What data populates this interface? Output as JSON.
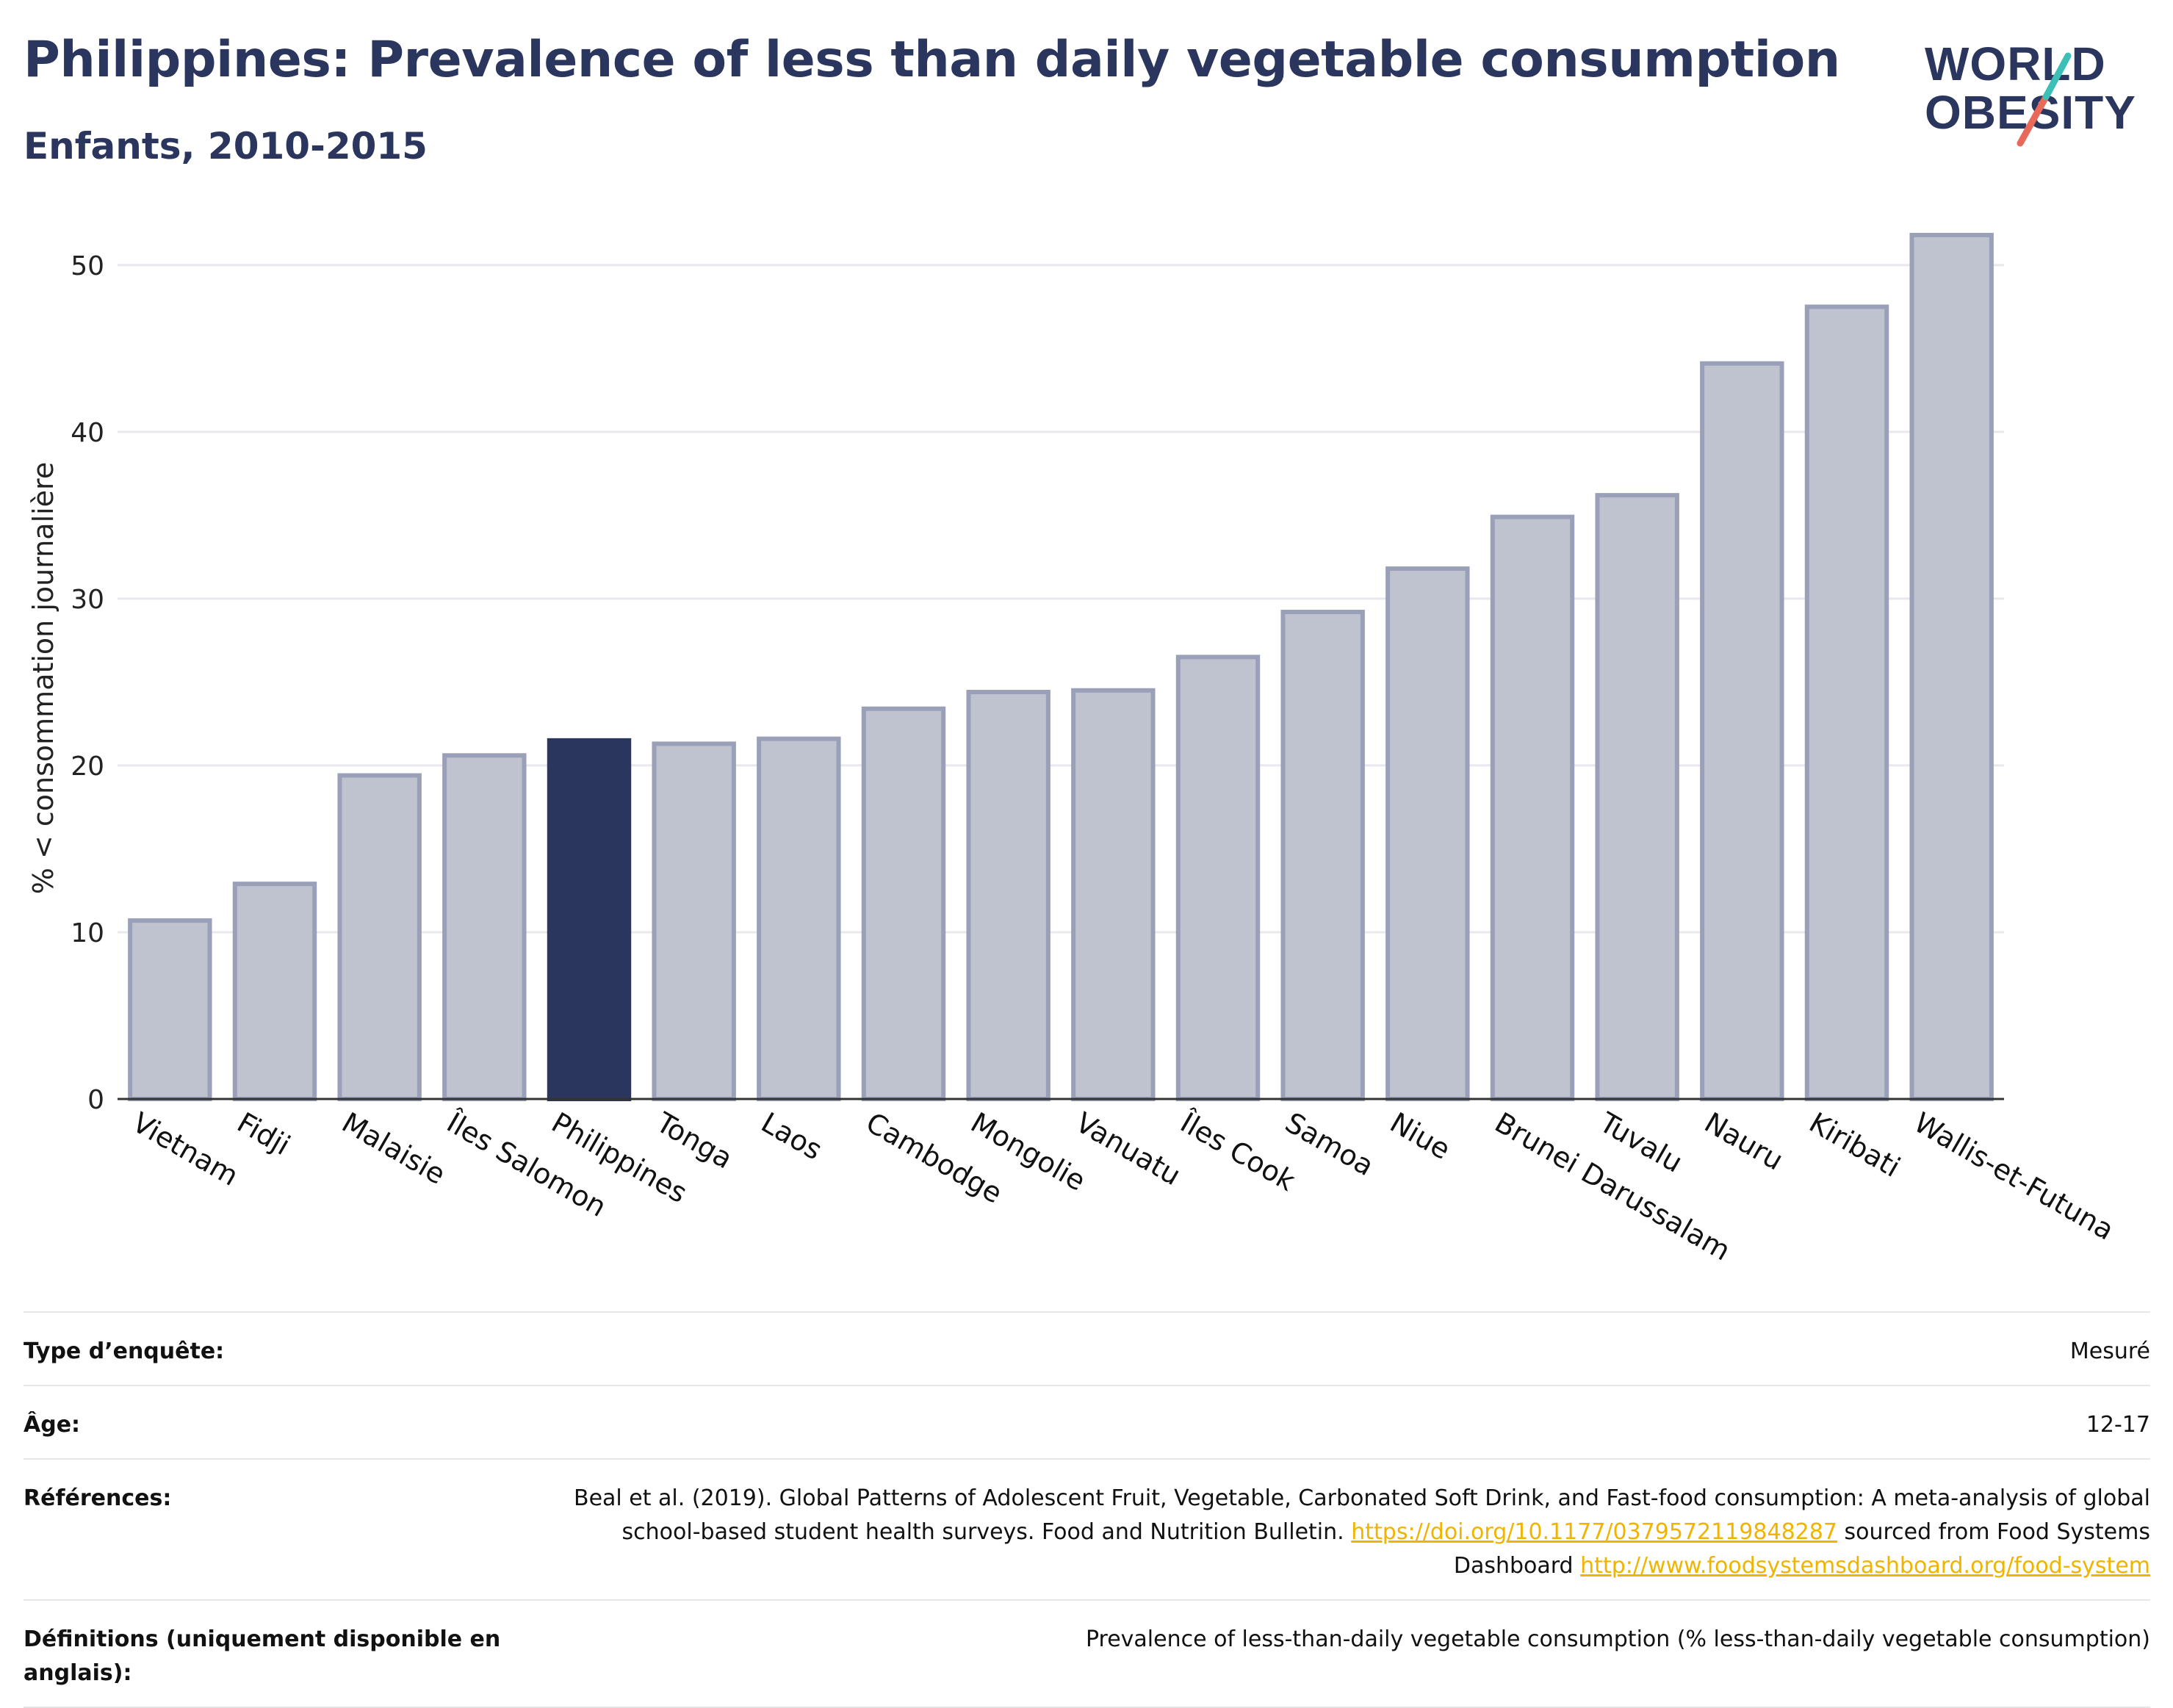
{
  "header": {
    "title": "Philippines: Prevalence of less than daily vegetable consumption",
    "subtitle": "Enfants, 2010-2015"
  },
  "logo": {
    "line1": "WORLD",
    "line2": "OBESITY",
    "icon": "slash-icon",
    "colors": {
      "text": "#2b365e",
      "slash_top": "#3bbfb7",
      "slash_bottom": "#e8685a"
    }
  },
  "colors": {
    "highlight": "#2b365e",
    "bar_fill": "#bfc3d0",
    "bar_stroke": "#9aa0b8",
    "grid": "#e8e8ee",
    "link": "#f0b400"
  },
  "chart_data": {
    "type": "bar",
    "title": "Philippines: Prevalence of less than daily vegetable consumption",
    "subtitle": "Enfants, 2010-2015",
    "xlabel": "",
    "ylabel": "% < consommation journalière",
    "ylim": [
      0,
      54
    ],
    "yticks": [
      0,
      10,
      20,
      30,
      40,
      50
    ],
    "grid": true,
    "highlight": "Philippines",
    "categories": [
      "Vietnam",
      "Fidji",
      "Malaisie",
      "Îles Salomon",
      "Philippines",
      "Tonga",
      "Laos",
      "Cambodge",
      "Mongolie",
      "Vanuatu",
      "Îles Cook",
      "Samoa",
      "Niue",
      "Brunei Darussalam",
      "Tuvalu",
      "Nauru",
      "Kiribati",
      "Wallis-et-Futuna"
    ],
    "values": [
      10.7,
      12.9,
      19.4,
      20.6,
      21.5,
      21.3,
      21.6,
      23.4,
      24.4,
      24.5,
      26.5,
      29.2,
      31.8,
      34.9,
      36.2,
      44.1,
      47.5,
      51.8
    ]
  },
  "info": {
    "rows": [
      {
        "label": "Type d’enquête:",
        "value": "Mesuré"
      },
      {
        "label": "Âge:",
        "value": "12-17"
      },
      {
        "label": "Références:",
        "value_pre": "Beal et al. (2019). Global Patterns of Adolescent Fruit, Vegetable, Carbonated Soft Drink, and Fast-food consumption: A meta-analysis of global school-based student health surveys. Food and Nutrition Bulletin.",
        "link1": "https://doi.org/10.1177/0379572119848287",
        "value_mid": "sourced from Food Systems Dashboard",
        "link2": "http://www.foodsystemsdashboard.org/food-system"
      },
      {
        "label": "Définitions (uniquement disponible en anglais):",
        "value": "Prevalence of less-than-daily vegetable consumption (% less-than-daily vegetable consumption)"
      }
    ]
  }
}
